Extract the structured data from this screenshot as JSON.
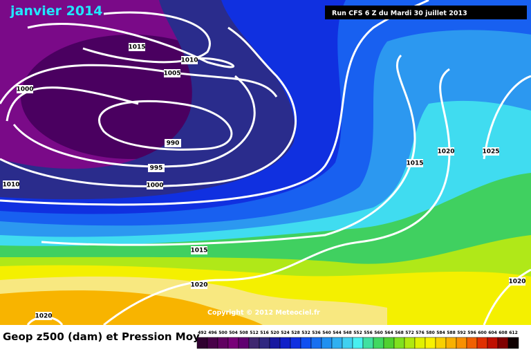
{
  "header": {
    "title": "janvier 2014",
    "run": "Run CFS 6 Z du Mardi 30 juillet 2013"
  },
  "map": {
    "isobar_labels": [
      "1015",
      "1010",
      "1005",
      "1000",
      "990",
      "995",
      "1000",
      "1010",
      "1015",
      "1020",
      "1020",
      "1015",
      "1020",
      "1025",
      "1020"
    ],
    "copyright": "Copyright © 2012 Meteociel.fr"
  },
  "footer": {
    "caption": "Geop z500 (dam) et Pression Moy",
    "scale": {
      "labels": [
        492,
        496,
        500,
        504,
        508,
        512,
        516,
        520,
        524,
        528,
        532,
        536,
        540,
        544,
        548,
        552,
        556,
        560,
        564,
        568,
        572,
        576,
        580,
        584,
        588,
        592,
        596,
        600,
        604,
        608,
        612
      ],
      "colors": [
        "#300030",
        "#480048",
        "#600060",
        "#780078",
        "#600070",
        "#402870",
        "#302880",
        "#1818a0",
        "#1020c8",
        "#1030e0",
        "#1050f0",
        "#1870f0",
        "#2090f0",
        "#30b0f0",
        "#40d0f0",
        "#48f0f0",
        "#40e0a0",
        "#40d860",
        "#50d030",
        "#80e020",
        "#b0e810",
        "#e0f000",
        "#f8f000",
        "#f8d000",
        "#f8b000",
        "#f89000",
        "#f06000",
        "#e03000",
        "#c01000",
        "#800000",
        "#100000"
      ]
    }
  }
}
